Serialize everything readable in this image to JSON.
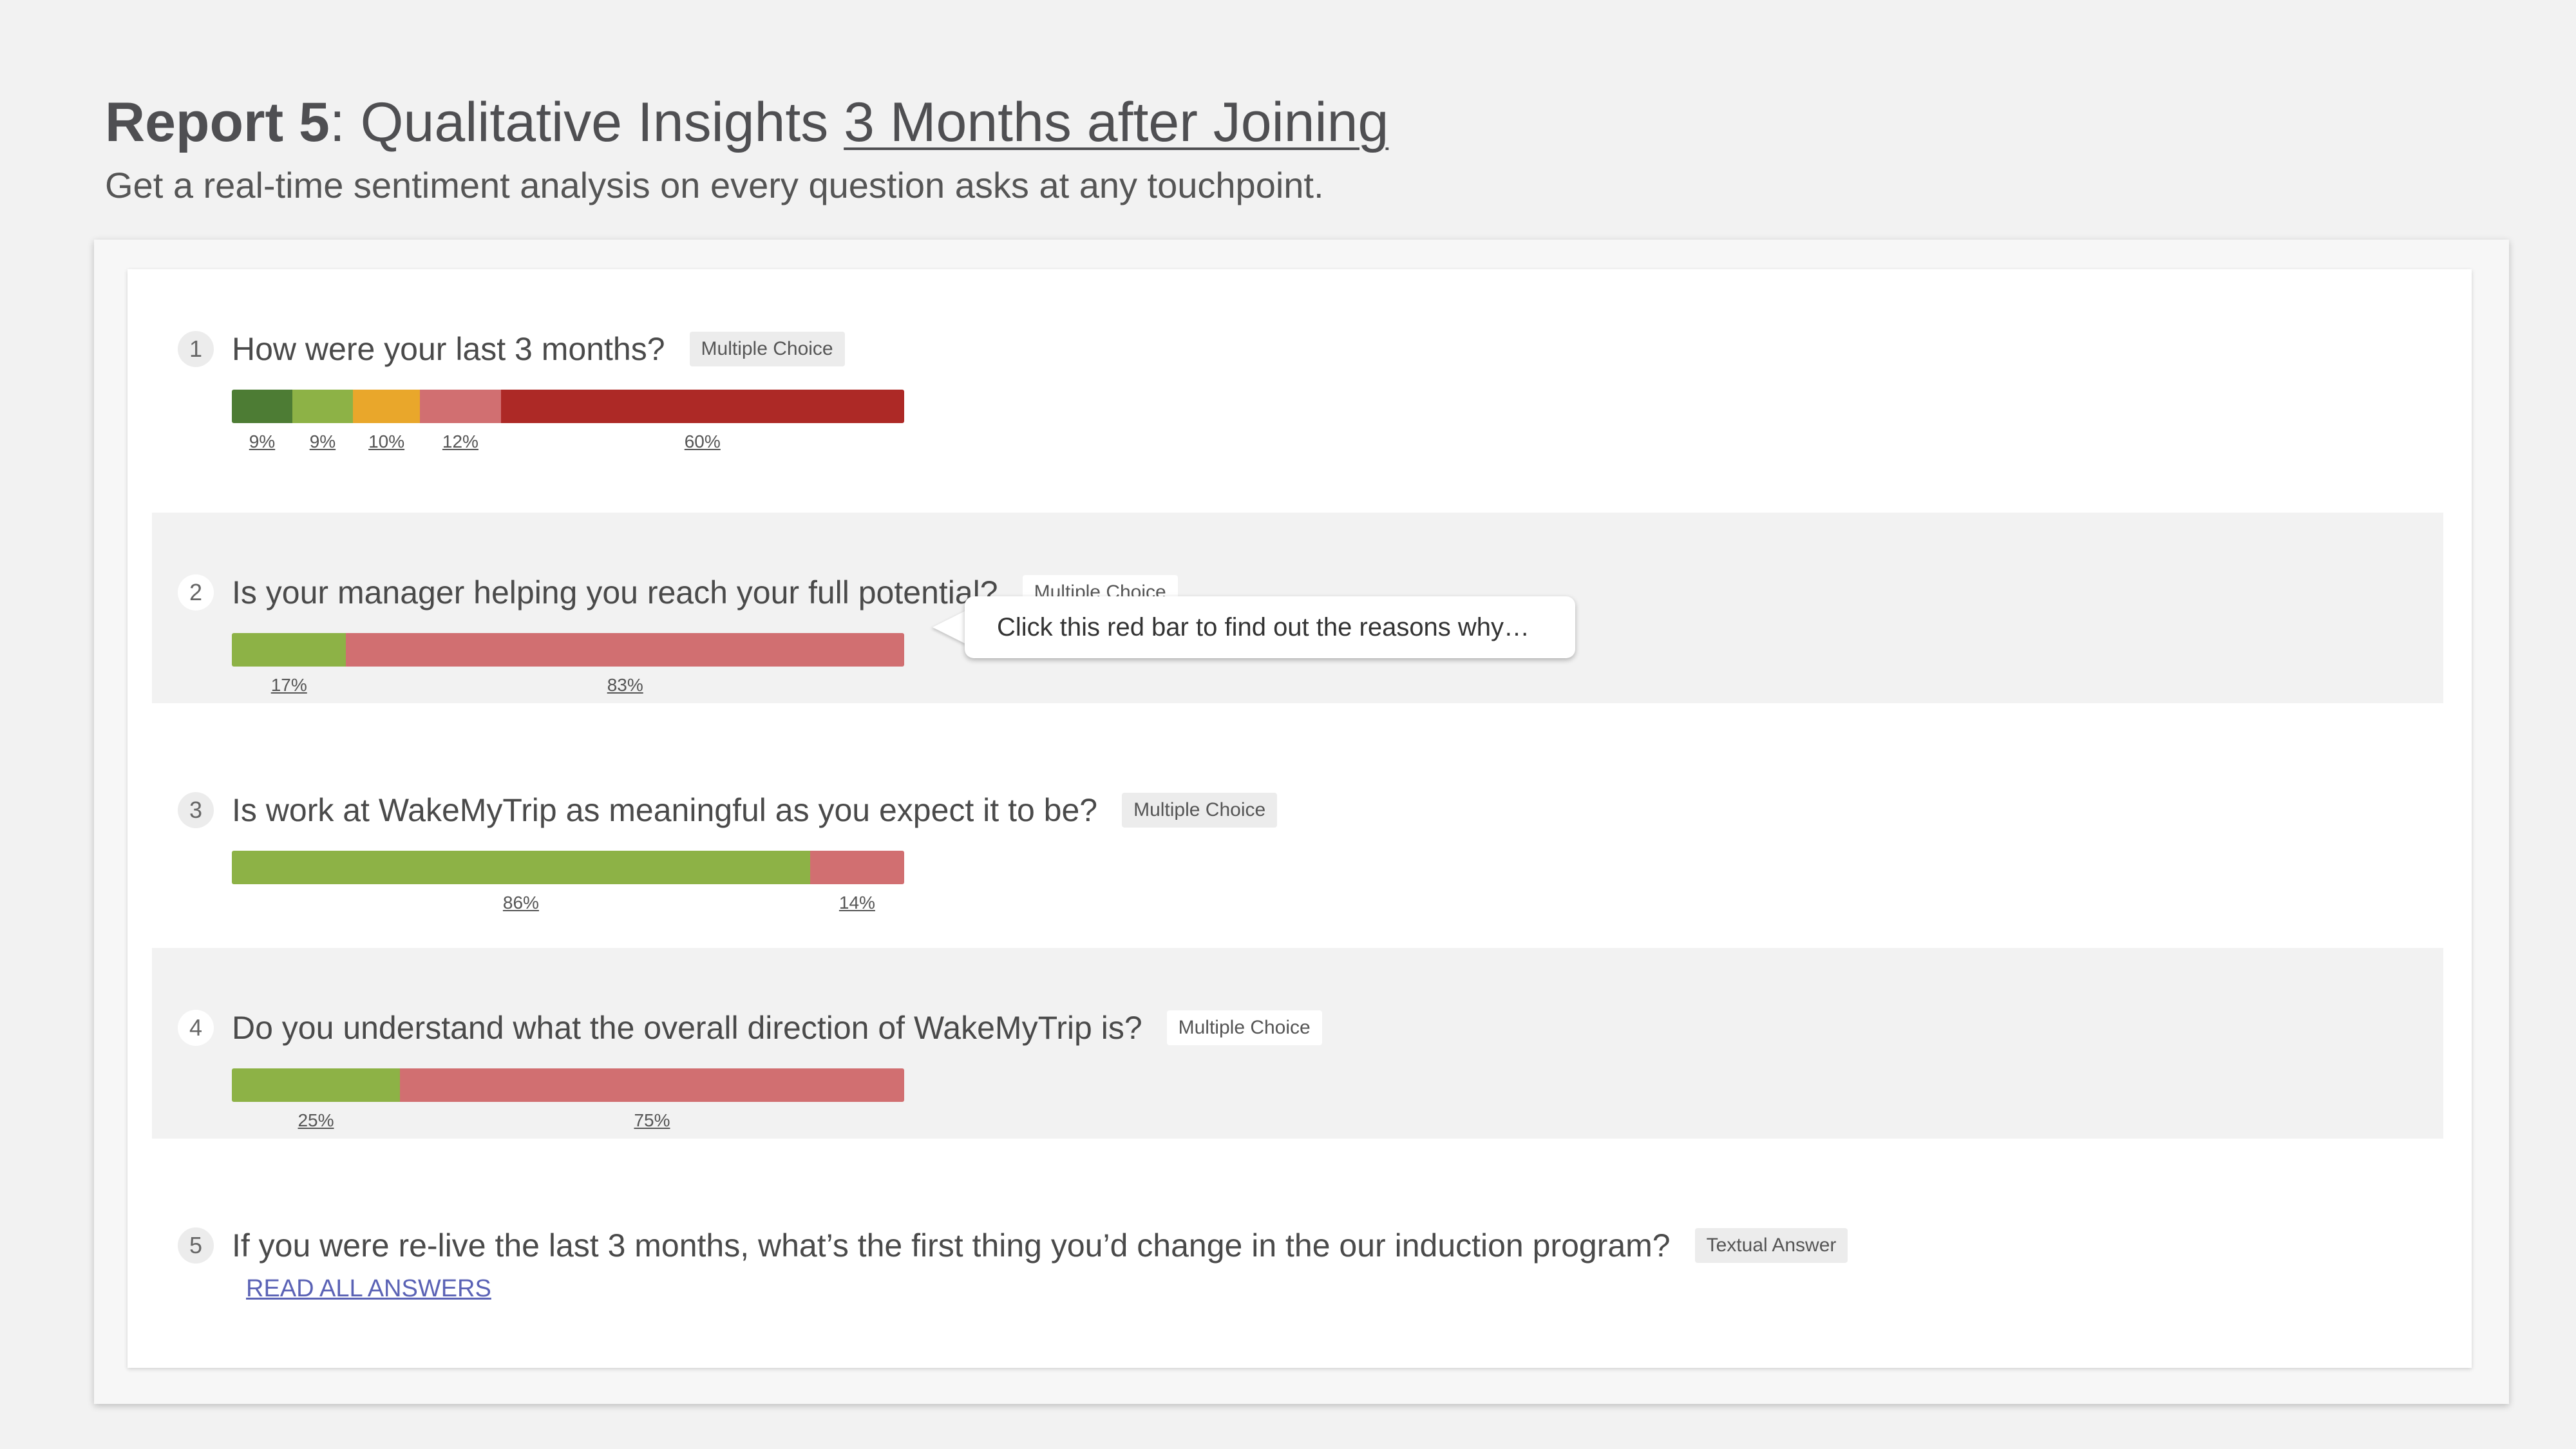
{
  "header": {
    "title_bold": "Report 5",
    "title_sep": ": ",
    "title_main": "Qualitative Insights ",
    "title_link": "3 Months after Joining",
    "subtitle": "Get a real-time sentiment analysis on every question asks at any touchpoint."
  },
  "questions": [
    {
      "number": "1",
      "text": "How were your last 3 months?",
      "type": "Multiple Choice",
      "segments": [
        {
          "value": 9,
          "label": "9%",
          "color": "#4d7c34"
        },
        {
          "value": 9,
          "label": "9%",
          "color": "#8db246"
        },
        {
          "value": 10,
          "label": "10%",
          "color": "#e9a72b"
        },
        {
          "value": 12,
          "label": "12%",
          "color": "#d16f71"
        },
        {
          "value": 60,
          "label": "60%",
          "color": "#ad2926"
        }
      ]
    },
    {
      "number": "2",
      "text": "Is your manager helping you reach your full potential?",
      "type": "Multiple Choice",
      "segments": [
        {
          "value": 17,
          "label": "17%",
          "color": "#8db246"
        },
        {
          "value": 83,
          "label": "83%",
          "color": "#d16f71"
        }
      ],
      "callout": "Click this red bar to find out the reasons why…"
    },
    {
      "number": "3",
      "text": "Is work at WakeMyTrip as meaningful as you expect it to be?",
      "type": "Multiple Choice",
      "segments": [
        {
          "value": 86,
          "label": "86%",
          "color": "#8db246"
        },
        {
          "value": 14,
          "label": "14%",
          "color": "#d16f71"
        }
      ]
    },
    {
      "number": "4",
      "text": "Do you understand what the overall direction of WakeMyTrip is?",
      "type": "Multiple Choice",
      "segments": [
        {
          "value": 25,
          "label": "25%",
          "color": "#8db246"
        },
        {
          "value": 75,
          "label": "75%",
          "color": "#d16f71"
        }
      ]
    },
    {
      "number": "5",
      "text": "If you were re-live the last 3 months, what’s the first thing you’d change in the our induction program?",
      "type": "Textual Answer",
      "read_all_label": "READ ALL ANSWERS"
    }
  ]
}
